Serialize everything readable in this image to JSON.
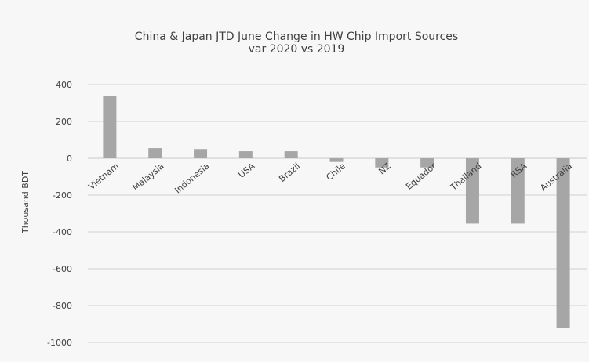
{
  "chart_data": {
    "type": "bar",
    "title": "China & Japan JTD June Change in HW Chip Import Sources",
    "subtitle": "var 2020 vs 2019",
    "xlabel": "",
    "ylabel": "Thousand BDT",
    "ylim": [
      -1000,
      400
    ],
    "yticks": [
      400,
      200,
      0,
      -200,
      -400,
      -600,
      -800,
      -1000
    ],
    "categories": [
      "Vietnam",
      "Malaysia",
      "Indonesia",
      "USA",
      "Brazil",
      "Chile",
      "NZ",
      "Equador",
      "Thailand",
      "RSA",
      "Australia"
    ],
    "values": [
      340,
      55,
      50,
      38,
      38,
      -20,
      -50,
      -50,
      -355,
      -355,
      -920
    ],
    "grid": true,
    "legend": "none",
    "colors": {
      "bar": "#a6a6a6",
      "background": "#f7f7f7",
      "grid": "#d0d0d0",
      "text": "#404040"
    }
  }
}
